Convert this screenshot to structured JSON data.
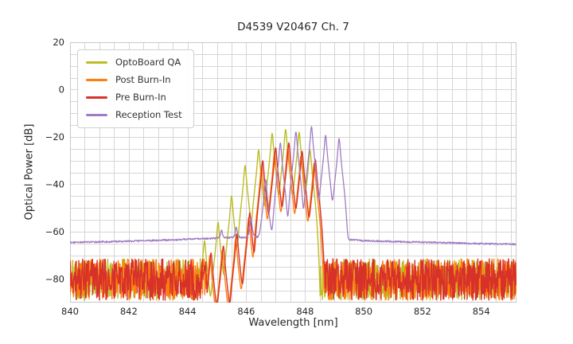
{
  "figure": {
    "title": "D4539 V20467 Ch. 7",
    "x_axis": {
      "label": "Wavelength [nm]"
    },
    "y_axis": {
      "label": "Optical Power [dB]"
    }
  },
  "chart_data": {
    "type": "line",
    "title": "D4539 V20467 Ch. 7",
    "xlabel": "Wavelength [nm]",
    "ylabel": "Optical Power [dB]",
    "xlim": [
      840,
      855.2
    ],
    "ylim": [
      -90,
      20
    ],
    "x_ticks": [
      840,
      842,
      844,
      846,
      848,
      850,
      852,
      854
    ],
    "x_tick_labels": [
      "840",
      "842",
      "844",
      "846",
      "848",
      "850",
      "852",
      "854"
    ],
    "y_ticks": [
      20,
      0,
      -20,
      -40,
      -60,
      -80
    ],
    "y_tick_labels": [
      "20",
      "0",
      "−20",
      "−40",
      "−60",
      "−80"
    ],
    "grid": {
      "on": true,
      "x_step_nm": 0.5,
      "y_step_dB": 5,
      "color": "#d6d6d6"
    },
    "legend_position": "upper left",
    "sample_step_nm": 0.013,
    "mode_shape": {
      "gamma_nm": 0.03,
      "quartic_a": 0.05,
      "cutoff_u": 7
    },
    "series": [
      {
        "name": "OptoBoard QA",
        "color": "#bcbd22",
        "line_width": 1.4,
        "modes_nm_dB": [
          [
            844.58,
            -64
          ],
          [
            845.04,
            -56
          ],
          [
            845.5,
            -45
          ],
          [
            845.96,
            -32
          ],
          [
            846.42,
            -25.5
          ],
          [
            846.88,
            -18.5
          ],
          [
            847.34,
            -16.8
          ],
          [
            847.8,
            -18.0
          ],
          [
            848.17,
            -25.5
          ]
        ],
        "noise_floor": {
          "kind": "spiky",
          "ranges_nm": [
            [
              840,
              844.62
            ],
            [
              848.52,
              855.2
            ]
          ],
          "min_dB": -89,
          "max_dB": -71.5,
          "seed": 101
        }
      },
      {
        "name": "Post Burn-In",
        "color": "#ff7f0e",
        "line_width": 1.4,
        "modes_nm_dB": [
          [
            844.76,
            -70
          ],
          [
            845.18,
            -68
          ],
          [
            845.64,
            -63
          ],
          [
            846.08,
            -54
          ],
          [
            846.52,
            -32
          ],
          [
            846.96,
            -26.5
          ],
          [
            847.41,
            -24.5
          ],
          [
            847.86,
            -28
          ],
          [
            848.31,
            -31
          ]
        ],
        "noise_floor": {
          "kind": "spiky",
          "ranges_nm": [
            [
              840,
              844.66
            ],
            [
              848.58,
              855.2
            ]
          ],
          "min_dB": -89,
          "max_dB": -71.5,
          "seed": 202
        }
      },
      {
        "name": "Pre Burn-In",
        "color": "#d7322a",
        "line_width": 1.4,
        "modes_nm_dB": [
          [
            844.8,
            -69
          ],
          [
            845.22,
            -66
          ],
          [
            845.68,
            -61
          ],
          [
            846.12,
            -52
          ],
          [
            846.56,
            -30
          ],
          [
            847.0,
            -24.5
          ],
          [
            847.45,
            -22.5
          ],
          [
            847.9,
            -26
          ],
          [
            848.35,
            -29.5
          ]
        ],
        "noise_floor": {
          "kind": "spiky",
          "ranges_nm": [
            [
              840,
              844.66
            ],
            [
              848.6,
              855.2
            ]
          ],
          "min_dB": -89,
          "max_dB": -71.5,
          "seed": 303
        }
      },
      {
        "name": "Reception Test",
        "color": "#a07cc5",
        "line_width": 1.3,
        "modes_nm_dB": [
          [
            845.16,
            -62
          ],
          [
            845.66,
            -60
          ],
          [
            846.16,
            -55
          ],
          [
            846.66,
            -38
          ],
          [
            847.16,
            -22.5
          ],
          [
            847.69,
            -17.8
          ],
          [
            848.22,
            -15.6
          ],
          [
            848.7,
            -19.3
          ],
          [
            849.16,
            -20.6
          ]
        ],
        "baseline_nm_dB": [
          [
            840,
            -64.6
          ],
          [
            842,
            -64.1
          ],
          [
            843.5,
            -63.5
          ],
          [
            844.5,
            -63.0
          ],
          [
            845.2,
            -62.7
          ],
          [
            846.5,
            -62.4
          ],
          [
            848.0,
            -62.6
          ],
          [
            849.3,
            -63.2
          ],
          [
            850.0,
            -63.9
          ],
          [
            851.0,
            -64.2
          ],
          [
            853.0,
            -64.8
          ],
          [
            855.2,
            -65.4
          ]
        ],
        "ripple_dB": 0.35,
        "seed": 404
      }
    ]
  }
}
